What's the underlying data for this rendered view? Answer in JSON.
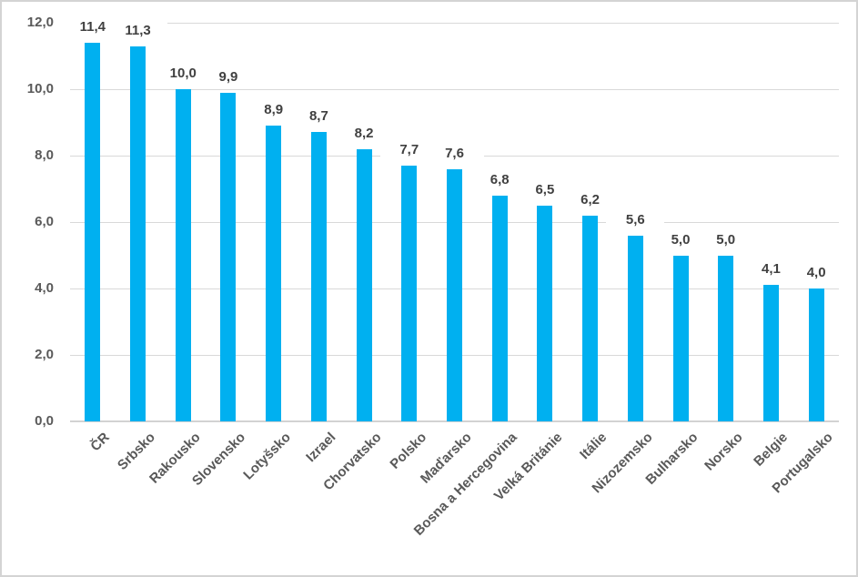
{
  "chart_data": {
    "type": "bar",
    "title": "",
    "xlabel": "",
    "ylabel": "",
    "categories": [
      "ČR",
      "Srbsko",
      "Rakousko",
      "Slovensko",
      "Lotyšsko",
      "Izrael",
      "Chorvatsko",
      "Polsko",
      "Maďarsko",
      "Bosna a Hercegovina",
      "Velká Británie",
      "Itálie",
      "Nizozemsko",
      "Bulharsko",
      "Norsko",
      "Belgie",
      "Portugalsko"
    ],
    "values": [
      11.4,
      11.3,
      10.0,
      9.9,
      8.9,
      8.7,
      8.2,
      7.7,
      7.6,
      6.8,
      6.5,
      6.2,
      5.6,
      5.0,
      5.0,
      4.1,
      4.0
    ],
    "value_labels": [
      "11,4",
      "11,3",
      "10,0",
      "9,9",
      "8,9",
      "8,7",
      "8,2",
      "7,7",
      "7,6",
      "6,8",
      "6,5",
      "6,2",
      "5,6",
      "5,0",
      "5,0",
      "4,1",
      "4,0"
    ],
    "ylim": [
      0,
      12
    ],
    "ytick_step": 2,
    "ytick_labels": [
      "0,0",
      "2,0",
      "4,0",
      "6,0",
      "8,0",
      "10,0",
      "12,0"
    ],
    "grid": true,
    "legend": false,
    "decimal_separator": ",",
    "colors": {
      "bar": "#00b0f0",
      "value_label": "#404040",
      "axis_label": "#595959",
      "gridline": "#d9d9d9",
      "axis_line": "#d2d2d2",
      "frame_border": "#d4d4d4",
      "background": "#ffffff"
    }
  }
}
